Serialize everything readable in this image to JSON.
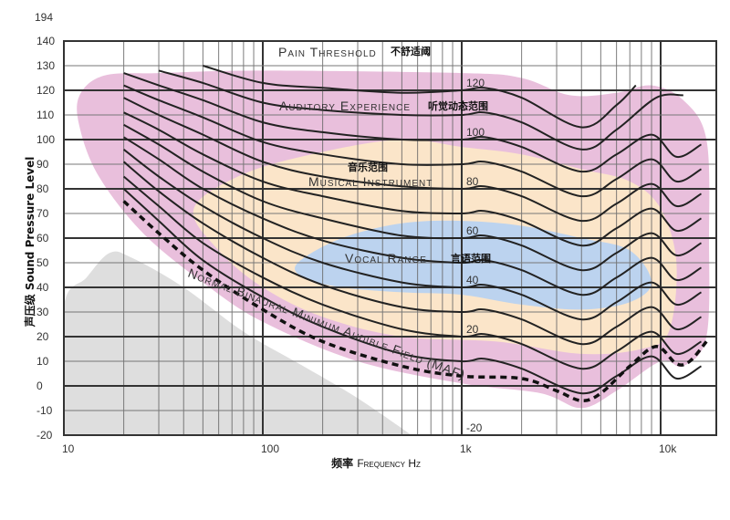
{
  "chart_data": {
    "type": "line",
    "title": "",
    "xlabel": "频率 Frequency Hz",
    "xlabel_cn": "频率",
    "xlabel_en": "Frequency Hz",
    "ylabel": "声压级 Sound Pressure Level",
    "x_scale": "log",
    "xlim": [
      10,
      19000
    ],
    "ylim": [
      -20,
      140
    ],
    "grid": true,
    "x_ticks": [
      {
        "value": 10,
        "label": "10"
      },
      {
        "value": 100,
        "label": "100"
      },
      {
        "value": 1000,
        "label": "1k"
      },
      {
        "value": 10000,
        "label": "10k"
      }
    ],
    "y_ticks": [
      140,
      130,
      120,
      110,
      100,
      90,
      80,
      70,
      60,
      50,
      40,
      30,
      20,
      10,
      0,
      -10,
      -20
    ],
    "y_top_label": "194",
    "contour_labels": [
      {
        "x": 1000,
        "y": 120,
        "label": "120"
      },
      {
        "x": 1000,
        "y": 100,
        "label": "100"
      },
      {
        "x": 1000,
        "y": 80,
        "label": "80"
      },
      {
        "x": 1000,
        "y": 60,
        "label": "60"
      },
      {
        "x": 1000,
        "y": 40,
        "label": "40"
      },
      {
        "x": 1000,
        "y": 20,
        "label": "20"
      },
      {
        "x": 1000,
        "y": -20,
        "label": "-20"
      }
    ],
    "series": [
      {
        "phon": 120,
        "points": [
          [
            50,
            130
          ],
          [
            100,
            123
          ],
          [
            200,
            121
          ],
          [
            500,
            119
          ],
          [
            1000,
            120
          ],
          [
            1300,
            121
          ],
          [
            2000,
            117
          ],
          [
            4000,
            105
          ],
          [
            6000,
            114
          ],
          [
            7500,
            122
          ]
        ]
      },
      {
        "phon": 110,
        "points": [
          [
            30,
            128
          ],
          [
            50,
            123
          ],
          [
            100,
            115
          ],
          [
            200,
            112
          ],
          [
            500,
            110
          ],
          [
            1000,
            110
          ],
          [
            1300,
            111
          ],
          [
            2000,
            107
          ],
          [
            4000,
            96
          ],
          [
            6000,
            104
          ],
          [
            9500,
            117
          ],
          [
            13000,
            118
          ]
        ]
      },
      {
        "phon": 100,
        "points": [
          [
            20,
            127
          ],
          [
            30,
            122
          ],
          [
            50,
            116
          ],
          [
            100,
            107
          ],
          [
            200,
            103
          ],
          [
            500,
            100
          ],
          [
            1000,
            100
          ],
          [
            1300,
            101
          ],
          [
            2000,
            97
          ],
          [
            4000,
            87
          ],
          [
            6000,
            94
          ],
          [
            9000,
            102
          ],
          [
            12000,
            93
          ],
          [
            16000,
            98
          ]
        ]
      },
      {
        "phon": 90,
        "points": [
          [
            20,
            122
          ],
          [
            30,
            116
          ],
          [
            50,
            109
          ],
          [
            100,
            99
          ],
          [
            200,
            94
          ],
          [
            500,
            90
          ],
          [
            1000,
            90
          ],
          [
            1300,
            91
          ],
          [
            2000,
            87
          ],
          [
            4000,
            77
          ],
          [
            6000,
            84
          ],
          [
            9000,
            92
          ],
          [
            12000,
            83
          ],
          [
            16000,
            88
          ]
        ]
      },
      {
        "phon": 80,
        "points": [
          [
            20,
            117
          ],
          [
            30,
            110
          ],
          [
            50,
            102
          ],
          [
            100,
            91
          ],
          [
            200,
            85
          ],
          [
            500,
            81
          ],
          [
            1000,
            80
          ],
          [
            1300,
            81
          ],
          [
            2000,
            77
          ],
          [
            4000,
            67
          ],
          [
            6000,
            74
          ],
          [
            9000,
            82
          ],
          [
            12000,
            73
          ],
          [
            16000,
            78
          ]
        ]
      },
      {
        "phon": 70,
        "points": [
          [
            20,
            111
          ],
          [
            30,
            104
          ],
          [
            50,
            94
          ],
          [
            100,
            83
          ],
          [
            200,
            77
          ],
          [
            500,
            71
          ],
          [
            1000,
            70
          ],
          [
            1300,
            71
          ],
          [
            2000,
            67
          ],
          [
            4000,
            57
          ],
          [
            6000,
            64
          ],
          [
            9000,
            72
          ],
          [
            12000,
            63
          ],
          [
            16000,
            68
          ]
        ]
      },
      {
        "phon": 60,
        "points": [
          [
            20,
            106
          ],
          [
            30,
            98
          ],
          [
            50,
            87
          ],
          [
            100,
            75
          ],
          [
            200,
            68
          ],
          [
            500,
            61
          ],
          [
            1000,
            60
          ],
          [
            1300,
            61
          ],
          [
            2000,
            57
          ],
          [
            4000,
            47
          ],
          [
            6000,
            54
          ],
          [
            9000,
            62
          ],
          [
            12000,
            53
          ],
          [
            16000,
            58
          ]
        ]
      },
      {
        "phon": 50,
        "points": [
          [
            20,
            101
          ],
          [
            30,
            92
          ],
          [
            50,
            80
          ],
          [
            100,
            68
          ],
          [
            200,
            59
          ],
          [
            500,
            52
          ],
          [
            1000,
            50
          ],
          [
            1300,
            51
          ],
          [
            2000,
            47
          ],
          [
            4000,
            37
          ],
          [
            6000,
            44
          ],
          [
            9000,
            52
          ],
          [
            12000,
            43
          ],
          [
            16000,
            48
          ]
        ]
      },
      {
        "phon": 40,
        "points": [
          [
            20,
            96
          ],
          [
            30,
            85
          ],
          [
            50,
            73
          ],
          [
            100,
            60
          ],
          [
            200,
            50
          ],
          [
            500,
            42
          ],
          [
            1000,
            40
          ],
          [
            1300,
            41
          ],
          [
            2000,
            37
          ],
          [
            4000,
            27
          ],
          [
            6000,
            34
          ],
          [
            9000,
            42
          ],
          [
            12000,
            33
          ],
          [
            16000,
            38
          ]
        ]
      },
      {
        "phon": 30,
        "points": [
          [
            20,
            91
          ],
          [
            30,
            79
          ],
          [
            50,
            66
          ],
          [
            100,
            52
          ],
          [
            200,
            41
          ],
          [
            500,
            32
          ],
          [
            1000,
            30
          ],
          [
            1300,
            31
          ],
          [
            2000,
            27
          ],
          [
            4000,
            17
          ],
          [
            6000,
            24
          ],
          [
            9000,
            32
          ],
          [
            12000,
            23
          ],
          [
            16000,
            28
          ]
        ]
      },
      {
        "phon": 20,
        "points": [
          [
            20,
            85
          ],
          [
            30,
            73
          ],
          [
            50,
            58
          ],
          [
            100,
            44
          ],
          [
            200,
            33
          ],
          [
            500,
            23
          ],
          [
            1000,
            20
          ],
          [
            1300,
            21
          ],
          [
            2000,
            17
          ],
          [
            4000,
            7
          ],
          [
            6000,
            14
          ],
          [
            9000,
            22
          ],
          [
            12000,
            13
          ],
          [
            16000,
            18
          ]
        ]
      },
      {
        "phon": 10,
        "points": [
          [
            20,
            80
          ],
          [
            30,
            67
          ],
          [
            50,
            51
          ],
          [
            100,
            36
          ],
          [
            200,
            24
          ],
          [
            500,
            13
          ],
          [
            1000,
            10
          ],
          [
            1300,
            11
          ],
          [
            2000,
            7
          ],
          [
            4000,
            -3
          ],
          [
            6000,
            4
          ],
          [
            9000,
            12
          ],
          [
            12000,
            3
          ],
          [
            16000,
            8
          ]
        ]
      }
    ],
    "maf": {
      "label": "Normal Binaural Minimum Audible Field (MAF)",
      "style": "dashed",
      "points": [
        [
          20,
          75
        ],
        [
          30,
          62
        ],
        [
          50,
          47
        ],
        [
          100,
          31
        ],
        [
          200,
          18
        ],
        [
          500,
          8
        ],
        [
          1000,
          4
        ],
        [
          2000,
          3
        ],
        [
          3000,
          -2
        ],
        [
          4000,
          -6
        ],
        [
          5000,
          -3
        ],
        [
          7000,
          8
        ],
        [
          9500,
          16
        ],
        [
          12000,
          9
        ],
        [
          14000,
          10
        ],
        [
          17000,
          18
        ]
      ]
    },
    "regions": [
      {
        "name": "auditory-experience",
        "color": "#e9bfdc",
        "points": [
          [
            12,
            118
          ],
          [
            16,
            126
          ],
          [
            30,
            127
          ],
          [
            100,
            128
          ],
          [
            1000,
            127
          ],
          [
            2000,
            125
          ],
          [
            3500,
            118
          ],
          [
            6000,
            119
          ],
          [
            9000,
            122
          ],
          [
            13000,
            116
          ],
          [
            17000,
            100
          ],
          [
            17500,
            60
          ],
          [
            17000,
            20
          ],
          [
            13000,
            8
          ],
          [
            10000,
            10
          ],
          [
            6000,
            -2
          ],
          [
            4000,
            -9
          ],
          [
            2500,
            -3
          ],
          [
            1000,
            1
          ],
          [
            300,
            10
          ],
          [
            100,
            26
          ],
          [
            50,
            42
          ],
          [
            25,
            62
          ],
          [
            15,
            85
          ],
          [
            12,
            105
          ]
        ]
      },
      {
        "name": "musical-instrument",
        "color": "#fbe5c9",
        "points": [
          [
            45,
            72
          ],
          [
            80,
            86
          ],
          [
            200,
            95
          ],
          [
            500,
            100
          ],
          [
            1000,
            97
          ],
          [
            2000,
            94
          ],
          [
            4000,
            88
          ],
          [
            7000,
            83
          ],
          [
            10000,
            72
          ],
          [
            12000,
            50
          ],
          [
            11000,
            22
          ],
          [
            8000,
            15
          ],
          [
            4000,
            13
          ],
          [
            1500,
            18
          ],
          [
            500,
            20
          ],
          [
            200,
            28
          ],
          [
            100,
            40
          ],
          [
            60,
            55
          ]
        ]
      },
      {
        "name": "vocal-range",
        "color": "#bcd3ef",
        "points": [
          [
            150,
            50
          ],
          [
            250,
            60
          ],
          [
            500,
            66
          ],
          [
            1000,
            67
          ],
          [
            2000,
            65
          ],
          [
            4000,
            60
          ],
          [
            7000,
            55
          ],
          [
            9000,
            42
          ],
          [
            7000,
            34
          ],
          [
            4000,
            31
          ],
          [
            2000,
            33
          ],
          [
            1000,
            37
          ],
          [
            500,
            38
          ],
          [
            250,
            40
          ],
          [
            160,
            44
          ]
        ]
      },
      {
        "name": "below-hearing",
        "color": "#dedede",
        "points": [
          [
            10,
            -20
          ],
          [
            10,
            32
          ],
          [
            13,
            44
          ],
          [
            17,
            54
          ],
          [
            22,
            52
          ],
          [
            40,
            40
          ],
          [
            80,
            22
          ],
          [
            160,
            8
          ],
          [
            300,
            -5
          ],
          [
            560,
            -20
          ]
        ]
      }
    ],
    "annotations": [
      {
        "en": "Pain Threshold",
        "cn": "不舒适阈"
      },
      {
        "en": "Auditory Experience",
        "cn": "听觉动态范围"
      },
      {
        "en": "Musical Instrument",
        "cn": "音乐范围"
      },
      {
        "en": "Vocal Range",
        "cn": "言语范围"
      }
    ]
  }
}
